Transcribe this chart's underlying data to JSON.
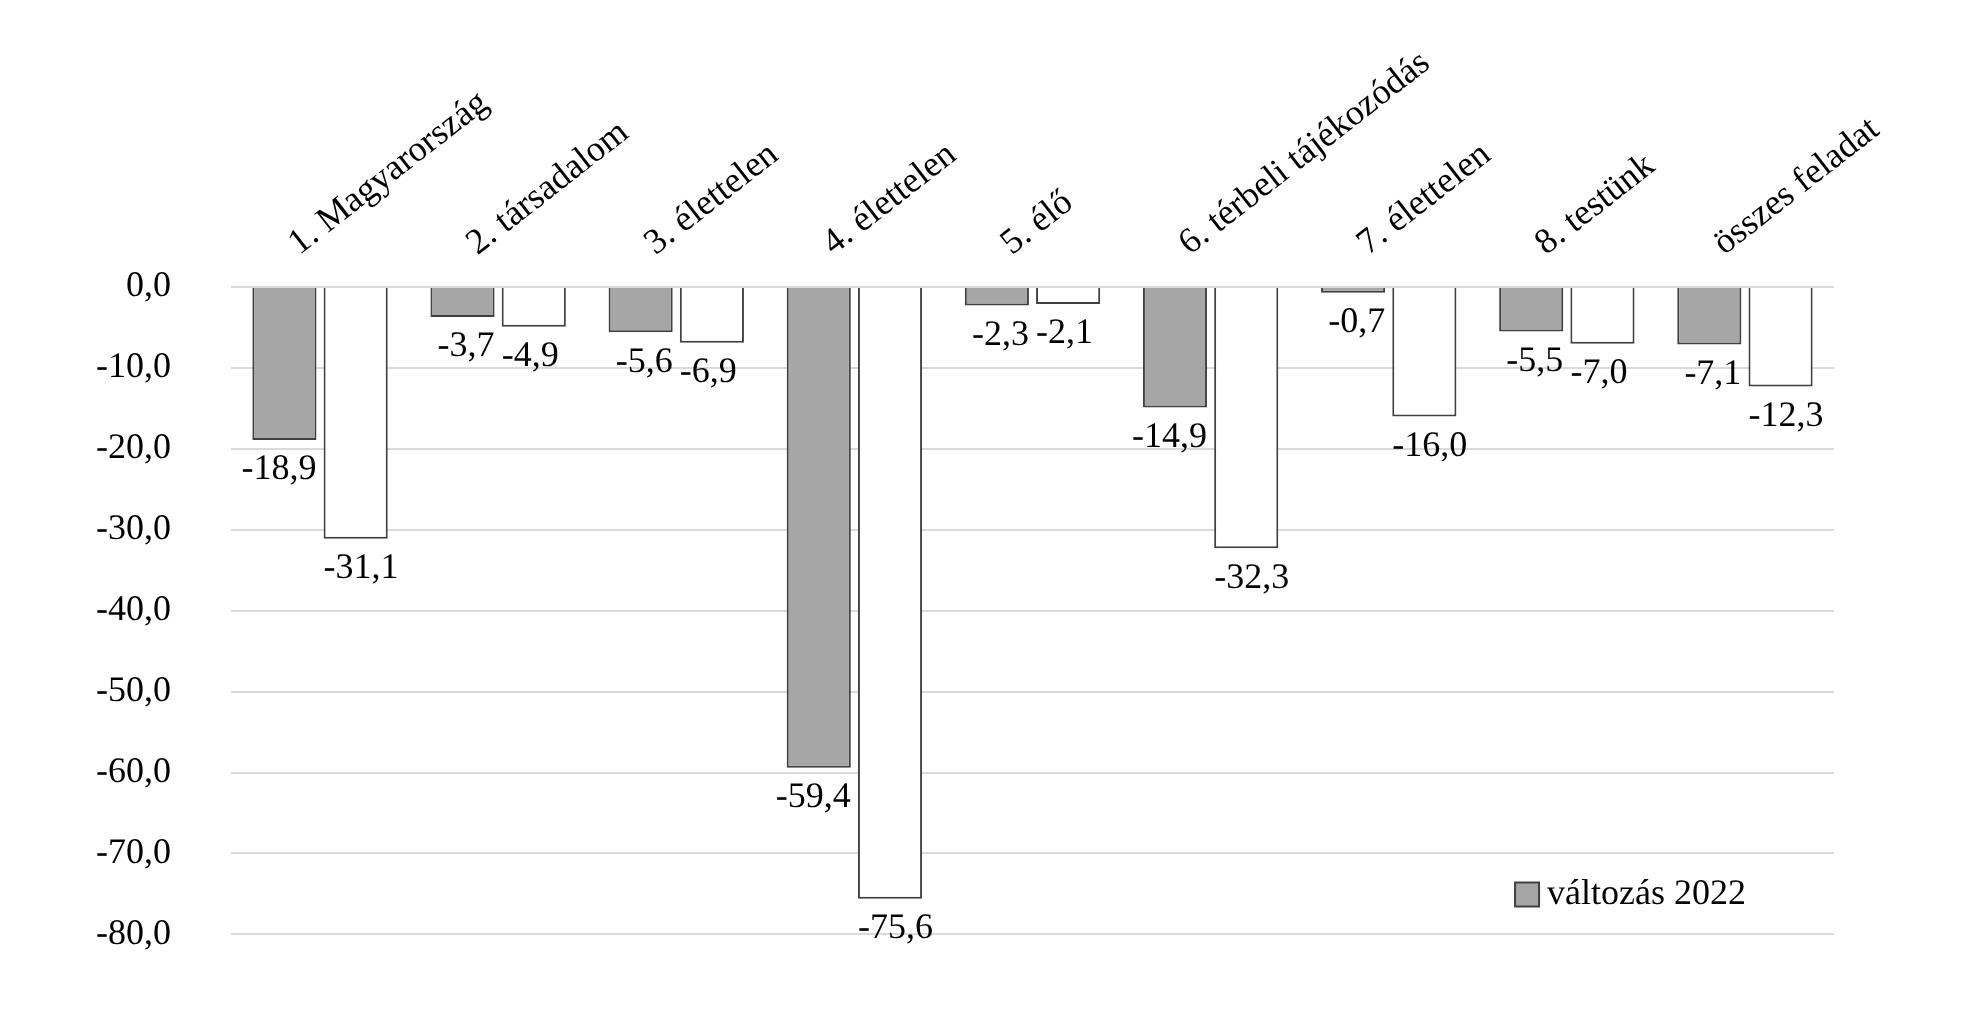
{
  "chart_data": {
    "type": "bar",
    "categories": [
      "1. Magyarország",
      "2. társadalom",
      "3. élettelen",
      "4. élettelen",
      "5. élő",
      "6. térbeli tájékozódás",
      "7. élettelen",
      "8. testünk",
      "összes feladat"
    ],
    "series": [
      {
        "name": "változás 2022",
        "color": "#a6a6a6",
        "values": [
          -18.9,
          -3.7,
          -5.6,
          -59.4,
          -2.3,
          -14.9,
          -0.7,
          -5.5,
          -7.1
        ],
        "value_labels": [
          "-18,9",
          "-3,7",
          "-5,6",
          "-59,4",
          "-2,3",
          "-14,9",
          "-0,7",
          "-5,5",
          "-7,1"
        ]
      },
      {
        "color": "#ffffff",
        "values": [
          -31.1,
          -4.9,
          -6.9,
          -75.6,
          -2.1,
          -32.3,
          -16.0,
          -7.0,
          -12.3
        ],
        "value_labels": [
          "-31,1",
          "-4,9",
          "-6,9",
          "-75,6",
          "-2,1",
          "-32,3",
          "-16,0",
          "-7,0",
          "-12,3"
        ]
      }
    ],
    "ylim": [
      -80,
      0
    ],
    "yticks": [
      {
        "value": 0,
        "label": "0,0"
      },
      {
        "value": -10,
        "label": "-10,0"
      },
      {
        "value": -20,
        "label": "-20,0"
      },
      {
        "value": -30,
        "label": "-30,0"
      },
      {
        "value": -40,
        "label": "-40,0"
      },
      {
        "value": -50,
        "label": "-50,0"
      },
      {
        "value": -60,
        "label": "-60,0"
      },
      {
        "value": -70,
        "label": "-70,0"
      },
      {
        "value": -80,
        "label": "-80,0"
      }
    ],
    "grid": "y",
    "legend": "bottom right"
  }
}
